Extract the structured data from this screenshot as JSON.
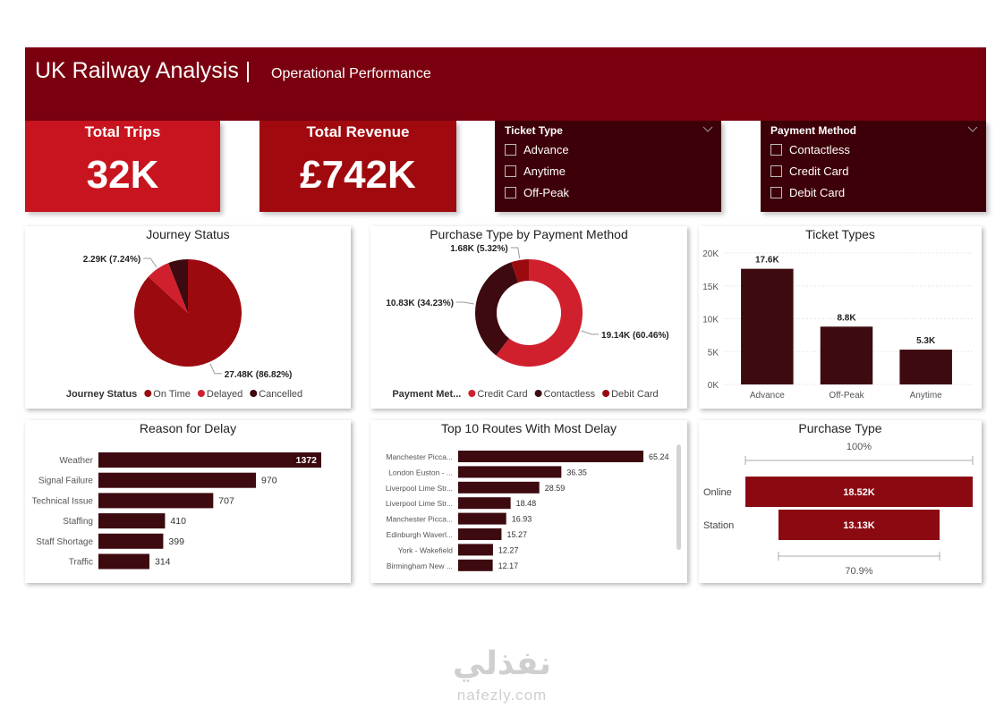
{
  "header": {
    "title": "UK Railway Analysis |",
    "subtitle": "Operational Performance"
  },
  "cards": [
    {
      "label": "Total Trips",
      "value": "32K"
    },
    {
      "label": "Total Revenue",
      "value": "£742K"
    }
  ],
  "slicers": [
    {
      "title": "Ticket Type",
      "options": [
        "Advance",
        "Anytime",
        "Off-Peak"
      ]
    },
    {
      "title": "Payment Method",
      "options": [
        "Contactless",
        "Credit Card",
        "Debit Card"
      ]
    }
  ],
  "watermark": {
    "name": "نفذلي",
    "url": "nafezly.com"
  },
  "chart_data": [
    {
      "type": "pie",
      "title": "Journey Status",
      "legend_title": "Journey Status",
      "categories": [
        "On Time",
        "Delayed",
        "Cancelled"
      ],
      "values": [
        27480,
        2290,
        1880
      ],
      "value_labels": [
        "27.48K (86.82%)",
        "2.29K (7.24%)",
        null
      ],
      "colors": [
        "#9b0a0f",
        "#d0202e",
        "#3d0a10"
      ]
    },
    {
      "type": "donut",
      "title": "Purchase Type by Payment Method",
      "legend_title": "Payment Met...",
      "categories": [
        "Credit Card",
        "Contactless",
        "Debit Card"
      ],
      "values": [
        19140,
        10830,
        1680
      ],
      "value_labels": [
        "19.14K (60.46%)",
        "10.83K (34.23%)",
        "1.68K (5.32%)"
      ],
      "colors": [
        "#d0202e",
        "#3d0a10",
        "#9b0a0f"
      ]
    },
    {
      "type": "bar",
      "title": "Ticket Types",
      "categories": [
        "Advance",
        "Off-Peak",
        "Anytime"
      ],
      "values": [
        17600,
        8800,
        5300
      ],
      "value_labels": [
        "17.6K",
        "8.8K",
        "5.3K"
      ],
      "color": "#3d0a10",
      "ylim": [
        0,
        20000
      ],
      "yticks": [
        {
          "value": 0,
          "label": "0K"
        },
        {
          "value": 5000,
          "label": "5K"
        },
        {
          "value": 10000,
          "label": "10K"
        },
        {
          "value": 15000,
          "label": "15K"
        },
        {
          "value": 20000,
          "label": "20K"
        }
      ],
      "grid": true
    },
    {
      "type": "hbar",
      "title": "Reason for Delay",
      "categories": [
        "Weather",
        "Signal Failure",
        "Technical Issue",
        "Staffing",
        "Staff Shortage",
        "Traffic"
      ],
      "values": [
        1372,
        970,
        707,
        410,
        399,
        314
      ],
      "color": "#3d0a10"
    },
    {
      "type": "hbar",
      "title": "Top 10 Routes With Most Delay",
      "categories": [
        "Manchester Picca...",
        "London Euston - ...",
        "Liverpool Lime Str...",
        "Liverpool Lime Str...",
        "Manchester Picca...",
        "Edinburgh Waverl...",
        "York - Wakefield",
        "Birmingham New ..."
      ],
      "values": [
        65.24,
        36.35,
        28.59,
        18.48,
        16.93,
        15.27,
        12.27,
        12.17
      ],
      "color": "#3d0a10"
    },
    {
      "type": "funnel",
      "title": "Purchase Type",
      "categories": [
        "Online",
        "Station"
      ],
      "values": [
        18520,
        13130
      ],
      "value_labels": [
        "18.52K",
        "13.13K"
      ],
      "color": "#8b0a12",
      "top_label": "100%",
      "bottom_label": "70.9%"
    }
  ]
}
